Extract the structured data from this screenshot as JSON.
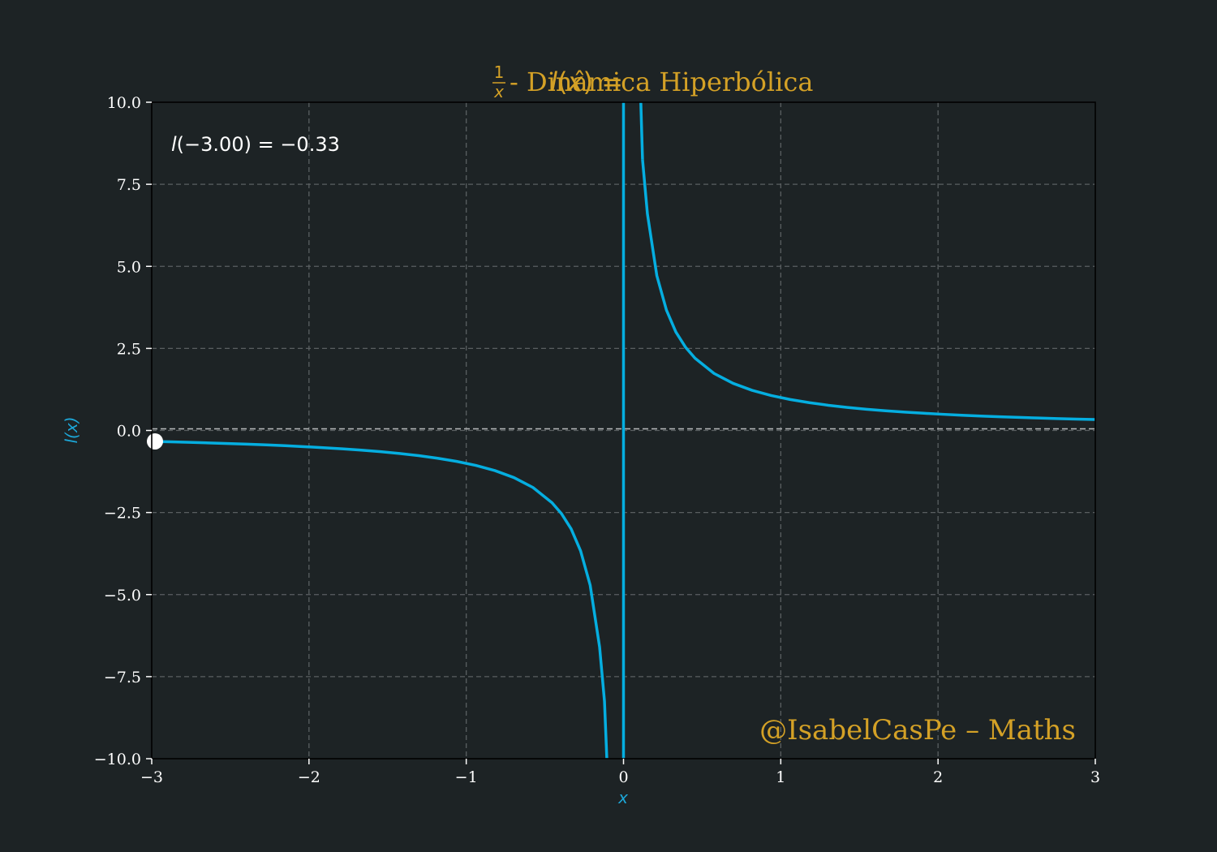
{
  "chart_data": {
    "type": "line",
    "title": {
      "func_name": "l",
      "var": "x",
      "numerator": "1",
      "suffix": " - Dinâmica Hiperbólica"
    },
    "xlabel": "x",
    "ylabel": "l(x)",
    "xlim": [
      -3,
      3
    ],
    "ylim": [
      -10,
      10
    ],
    "x_ticks": [
      -3,
      -2,
      -1,
      0,
      1,
      2,
      3
    ],
    "x_tick_labels": [
      "−3",
      "−2",
      "−1",
      "0",
      "1",
      "2",
      "3"
    ],
    "y_ticks": [
      -10,
      -7.5,
      -5,
      -2.5,
      0,
      2.5,
      5,
      7.5,
      10
    ],
    "y_tick_labels": [
      "−10.0",
      "−7.5",
      "−5.0",
      "−2.5",
      "0.0",
      "2.5",
      "5.0",
      "7.5",
      "10.0"
    ],
    "grid": true,
    "series": [
      {
        "function": "1/x",
        "x": [
          -3.0,
          -2.879,
          -2.758,
          -2.636,
          -2.515,
          -2.394,
          -2.273,
          -2.152,
          -2.03,
          -1.909,
          -1.788,
          -1.667,
          -1.545,
          -1.424,
          -1.303,
          -1.182,
          -1.061,
          -0.939,
          -0.818,
          -0.697,
          -0.576,
          -0.455,
          -0.394,
          -0.333,
          -0.273,
          -0.212,
          -0.152,
          -0.121,
          -0.106,
          0.0,
          0.121,
          0.152,
          0.212,
          0.273,
          0.333,
          0.394,
          0.455,
          0.576,
          0.697,
          0.818,
          0.939,
          1.061,
          1.182,
          1.303,
          1.424,
          1.545,
          1.667,
          1.788,
          1.909,
          2.03,
          2.152,
          2.273,
          2.394,
          2.515,
          2.636,
          2.758,
          2.879,
          3.0
        ],
        "y": [
          -0.333,
          -0.347,
          -0.363,
          -0.379,
          -0.398,
          -0.418,
          -0.44,
          -0.465,
          -0.493,
          -0.524,
          -0.559,
          -0.6,
          -0.647,
          -0.702,
          -0.767,
          -0.846,
          -0.943,
          -1.065,
          -1.222,
          -1.435,
          -1.737,
          -2.2,
          -2.538,
          -3.0,
          -3.667,
          -4.714,
          -6.6,
          -8.25,
          -10.0,
          null,
          8.25,
          6.6,
          4.714,
          3.667,
          3.0,
          2.538,
          2.2,
          1.737,
          1.435,
          1.222,
          1.065,
          0.943,
          0.846,
          0.767,
          0.702,
          0.647,
          0.6,
          0.559,
          0.524,
          0.493,
          0.465,
          0.44,
          0.418,
          0.398,
          0.379,
          0.363,
          0.347,
          0.333
        ]
      }
    ],
    "vertical_line_x": 0,
    "horizontal_line_y": 0,
    "marker_point": {
      "x": -3.0,
      "y": -0.333
    },
    "annotation": {
      "func_name": "l",
      "arg": "(−3.00)",
      "eq": " = −0.33"
    },
    "watermark": "@IsabelCasPe – Maths",
    "colors": {
      "background": "#1d2325",
      "curve": "#05aee0",
      "accent": "#d4a126",
      "text": "#ffffff",
      "grid": "#5a5f61",
      "ylabel": "#1da7d8"
    }
  }
}
